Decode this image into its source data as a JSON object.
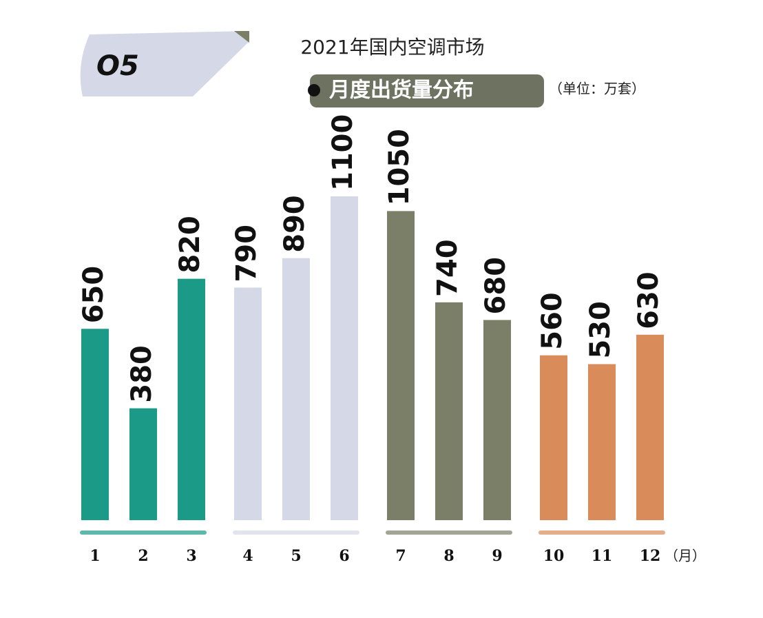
{
  "badge": "O5",
  "chart_data": {
    "type": "bar",
    "title": "2021年国内空调市场",
    "subtitle": "月度出货量分布",
    "unit": "（单位：万套）",
    "x_unit": "（月）",
    "categories": [
      "1",
      "2",
      "3",
      "4",
      "5",
      "6",
      "7",
      "8",
      "9",
      "10",
      "11",
      "12"
    ],
    "values": [
      650,
      380,
      820,
      790,
      890,
      1100,
      1050,
      740,
      680,
      560,
      530,
      630
    ],
    "colors": [
      "#1a9a87",
      "#1a9a87",
      "#1a9a87",
      "#d5d8e6",
      "#d5d8e6",
      "#d5d8e6",
      "#7b7f67",
      "#7b7f67",
      "#7b7f67",
      "#d98b5a",
      "#d98b5a",
      "#d98b5a"
    ],
    "ylim": [
      0,
      1100
    ]
  }
}
